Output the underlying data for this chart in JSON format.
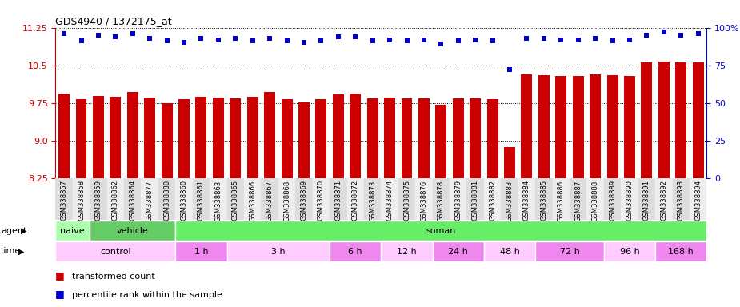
{
  "title": "GDS4940 / 1372175_at",
  "samples": [
    "GSM338857",
    "GSM338858",
    "GSM338859",
    "GSM338862",
    "GSM338864",
    "GSM338877",
    "GSM338880",
    "GSM338860",
    "GSM338861",
    "GSM338863",
    "GSM338865",
    "GSM338866",
    "GSM338867",
    "GSM338868",
    "GSM338869",
    "GSM338870",
    "GSM338871",
    "GSM338872",
    "GSM338873",
    "GSM338874",
    "GSM338875",
    "GSM338876",
    "GSM338878",
    "GSM338879",
    "GSM338881",
    "GSM338882",
    "GSM338883",
    "GSM338884",
    "GSM338885",
    "GSM338886",
    "GSM338887",
    "GSM338888",
    "GSM338889",
    "GSM338890",
    "GSM338891",
    "GSM338892",
    "GSM338893",
    "GSM338894"
  ],
  "bar_values": [
    9.93,
    9.82,
    9.89,
    9.87,
    9.96,
    9.86,
    9.75,
    9.83,
    9.87,
    9.86,
    9.84,
    9.87,
    9.96,
    9.83,
    9.76,
    9.83,
    9.92,
    9.94,
    9.84,
    9.86,
    9.84,
    9.84,
    9.72,
    9.84,
    9.84,
    9.83,
    8.87,
    10.32,
    10.3,
    10.28,
    10.28,
    10.32,
    10.3,
    10.28,
    10.56,
    10.58,
    10.56,
    10.55
  ],
  "percentile_values": [
    96,
    91,
    95,
    94,
    96,
    93,
    91,
    90,
    93,
    92,
    93,
    91,
    93,
    91,
    90,
    91,
    94,
    94,
    91,
    92,
    91,
    92,
    89,
    91,
    92,
    91,
    72,
    93,
    93,
    92,
    92,
    93,
    91,
    92,
    95,
    97,
    95,
    96
  ],
  "ylim_left": [
    8.25,
    11.25
  ],
  "yticks_left": [
    8.25,
    9.0,
    9.75,
    10.5,
    11.25
  ],
  "ylim_right": [
    0,
    100
  ],
  "yticks_right": [
    0,
    25,
    50,
    75,
    100
  ],
  "bar_color": "#cc0000",
  "dot_color": "#0000cc",
  "agent_groups": [
    {
      "label": "naive",
      "start": 0,
      "end": 2,
      "color": "#aaffaa"
    },
    {
      "label": "vehicle",
      "start": 2,
      "end": 7,
      "color": "#66cc66"
    },
    {
      "label": "soman",
      "start": 7,
      "end": 38,
      "color": "#66ee66"
    }
  ],
  "time_groups": [
    {
      "label": "control",
      "start": 0,
      "end": 7,
      "color": "#ffccff"
    },
    {
      "label": "1 h",
      "start": 7,
      "end": 10,
      "color": "#ee88ee"
    },
    {
      "label": "3 h",
      "start": 10,
      "end": 16,
      "color": "#ffccff"
    },
    {
      "label": "6 h",
      "start": 16,
      "end": 19,
      "color": "#ee88ee"
    },
    {
      "label": "12 h",
      "start": 19,
      "end": 22,
      "color": "#ffccff"
    },
    {
      "label": "24 h",
      "start": 22,
      "end": 25,
      "color": "#ee88ee"
    },
    {
      "label": "48 h",
      "start": 25,
      "end": 28,
      "color": "#ffccff"
    },
    {
      "label": "72 h",
      "start": 28,
      "end": 32,
      "color": "#ee88ee"
    },
    {
      "label": "96 h",
      "start": 32,
      "end": 35,
      "color": "#ffccff"
    },
    {
      "label": "168 h",
      "start": 35,
      "end": 38,
      "color": "#ee88ee"
    }
  ],
  "legend_bar_label": "transformed count",
  "legend_dot_label": "percentile rank within the sample",
  "background_color": "#ffffff"
}
